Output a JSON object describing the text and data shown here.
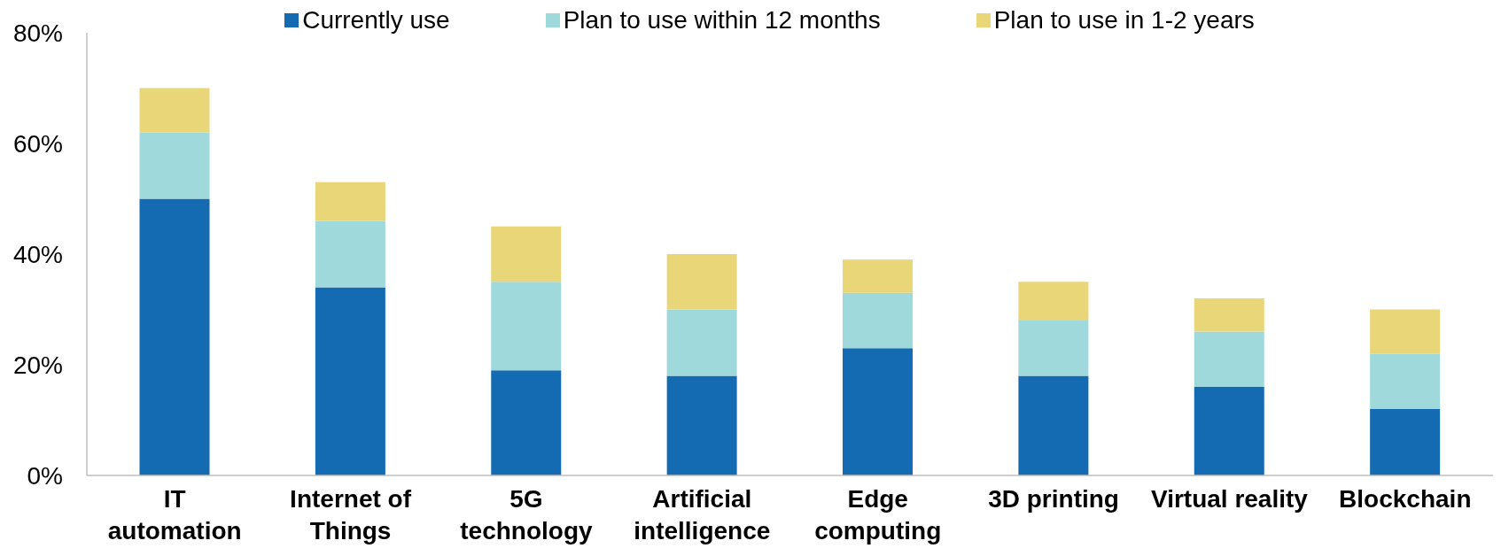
{
  "chart_data": {
    "type": "bar",
    "stacked": true,
    "categories": [
      "IT automation",
      "Internet of Things",
      "5G technology",
      "Artificial intelligence",
      "Edge computing",
      "3D printing",
      "Virtual reality",
      "Blockchain"
    ],
    "series": [
      {
        "name": "Currently use",
        "color": "#156bb1",
        "values": [
          50,
          34,
          19,
          18,
          23,
          18,
          16,
          12
        ]
      },
      {
        "name": "Plan to use within 12 months",
        "color": "#a0d9dc",
        "values": [
          12,
          12,
          16,
          12,
          10,
          10,
          10,
          10
        ]
      },
      {
        "name": "Plan to use in 1-2 years",
        "color": "#e8d679",
        "values": [
          8,
          7,
          10,
          10,
          6,
          7,
          6,
          8
        ]
      }
    ],
    "ylim": [
      0,
      80
    ],
    "yticks": [
      {
        "value": 0,
        "label": "0%"
      },
      {
        "value": 20,
        "label": "20%"
      },
      {
        "value": 40,
        "label": "40%"
      },
      {
        "value": 60,
        "label": "60%"
      },
      {
        "value": 80,
        "label": "80%"
      }
    ],
    "grid": false,
    "legend": "top"
  }
}
